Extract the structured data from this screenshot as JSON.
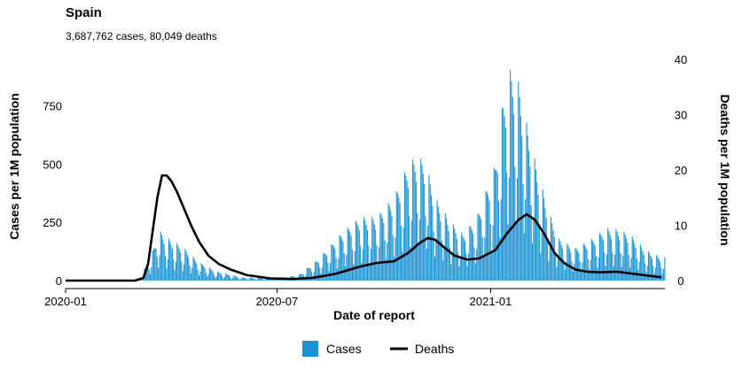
{
  "title": "Spain",
  "subtitle": "3,687,762 cases, 80,049 deaths",
  "chart_data": {
    "type": "bar+line",
    "xlabel": "Date of report",
    "ylabel_left": "Cases per 1M population",
    "ylabel_right": "Deaths per 1M population",
    "x_range": [
      "2020-01-01",
      "2021-05-31"
    ],
    "x_ticks": [
      {
        "date": "2020-01-01",
        "label": "2020-01"
      },
      {
        "date": "2020-07-01",
        "label": "2020-07"
      },
      {
        "date": "2021-01-01",
        "label": "2021-01"
      }
    ],
    "ylim_left": [
      0,
      950
    ],
    "yticks_left": [
      0,
      250,
      500,
      750
    ],
    "ylim_right": [
      0,
      40
    ],
    "yticks_right": [
      0,
      10,
      20,
      30,
      40
    ],
    "grid": false,
    "legend_position": "bottom",
    "series": [
      {
        "name": "Cases",
        "kind": "bar",
        "axis": "left",
        "color": "#1b93d2",
        "weekly_pattern": [
          1.0,
          0.95,
          0.88,
          0.8,
          0.55,
          0.28,
          0.5
        ],
        "envelope": [
          [
            "2020-01-01",
            0
          ],
          [
            "2020-02-20",
            0
          ],
          [
            "2020-03-05",
            10
          ],
          [
            "2020-03-14",
            100
          ],
          [
            "2020-03-22",
            215
          ],
          [
            "2020-03-28",
            185
          ],
          [
            "2020-04-10",
            150
          ],
          [
            "2020-04-25",
            80
          ],
          [
            "2020-05-10",
            40
          ],
          [
            "2020-06-01",
            14
          ],
          [
            "2020-07-01",
            10
          ],
          [
            "2020-07-20",
            25
          ],
          [
            "2020-08-05",
            90
          ],
          [
            "2020-08-25",
            200
          ],
          [
            "2020-09-10",
            270
          ],
          [
            "2020-09-25",
            275
          ],
          [
            "2020-10-10",
            360
          ],
          [
            "2020-10-22",
            500
          ],
          [
            "2020-10-28",
            530
          ],
          [
            "2020-11-05",
            520
          ],
          [
            "2020-11-15",
            350
          ],
          [
            "2020-11-28",
            250
          ],
          [
            "2020-12-08",
            200
          ],
          [
            "2020-12-20",
            270
          ],
          [
            "2021-01-05",
            500
          ],
          [
            "2021-01-12",
            780
          ],
          [
            "2021-01-18",
            905
          ],
          [
            "2021-01-24",
            880
          ],
          [
            "2021-01-31",
            700
          ],
          [
            "2021-02-10",
            480
          ],
          [
            "2021-02-20",
            300
          ],
          [
            "2021-03-01",
            180
          ],
          [
            "2021-03-15",
            140
          ],
          [
            "2021-03-30",
            180
          ],
          [
            "2021-04-10",
            225
          ],
          [
            "2021-04-20",
            220
          ],
          [
            "2021-05-01",
            200
          ],
          [
            "2021-05-15",
            130
          ],
          [
            "2021-05-28",
            100
          ]
        ]
      },
      {
        "name": "Deaths",
        "kind": "line",
        "axis": "right",
        "color": "#000000",
        "points": [
          [
            "2020-01-01",
            0
          ],
          [
            "2020-03-01",
            0
          ],
          [
            "2020-03-08",
            0.5
          ],
          [
            "2020-03-12",
            3
          ],
          [
            "2020-03-16",
            9
          ],
          [
            "2020-03-20",
            15
          ],
          [
            "2020-03-24",
            19
          ],
          [
            "2020-03-28",
            19
          ],
          [
            "2020-04-01",
            18
          ],
          [
            "2020-04-06",
            16
          ],
          [
            "2020-04-12",
            13
          ],
          [
            "2020-04-18",
            10
          ],
          [
            "2020-04-25",
            7
          ],
          [
            "2020-05-03",
            4.5
          ],
          [
            "2020-05-12",
            3
          ],
          [
            "2020-05-22",
            2
          ],
          [
            "2020-06-05",
            1
          ],
          [
            "2020-06-25",
            0.4
          ],
          [
            "2020-07-15",
            0.3
          ],
          [
            "2020-08-01",
            0.5
          ],
          [
            "2020-08-20",
            1.2
          ],
          [
            "2020-09-10",
            2.5
          ],
          [
            "2020-09-25",
            3.2
          ],
          [
            "2020-10-10",
            3.5
          ],
          [
            "2020-10-22",
            5
          ],
          [
            "2020-11-01",
            6.8
          ],
          [
            "2020-11-08",
            7.7
          ],
          [
            "2020-11-14",
            7.4
          ],
          [
            "2020-11-22",
            6
          ],
          [
            "2020-12-01",
            4.5
          ],
          [
            "2020-12-12",
            3.8
          ],
          [
            "2020-12-22",
            4
          ],
          [
            "2021-01-05",
            5.5
          ],
          [
            "2021-01-15",
            8.5
          ],
          [
            "2021-01-25",
            11
          ],
          [
            "2021-02-01",
            12
          ],
          [
            "2021-02-08",
            11
          ],
          [
            "2021-02-16",
            8.5
          ],
          [
            "2021-02-25",
            5
          ],
          [
            "2021-03-05",
            3.2
          ],
          [
            "2021-03-15",
            2
          ],
          [
            "2021-03-25",
            1.6
          ],
          [
            "2021-04-05",
            1.5
          ],
          [
            "2021-04-20",
            1.6
          ],
          [
            "2021-05-05",
            1.2
          ],
          [
            "2021-05-20",
            0.8
          ],
          [
            "2021-05-28",
            0.6
          ]
        ]
      }
    ]
  }
}
